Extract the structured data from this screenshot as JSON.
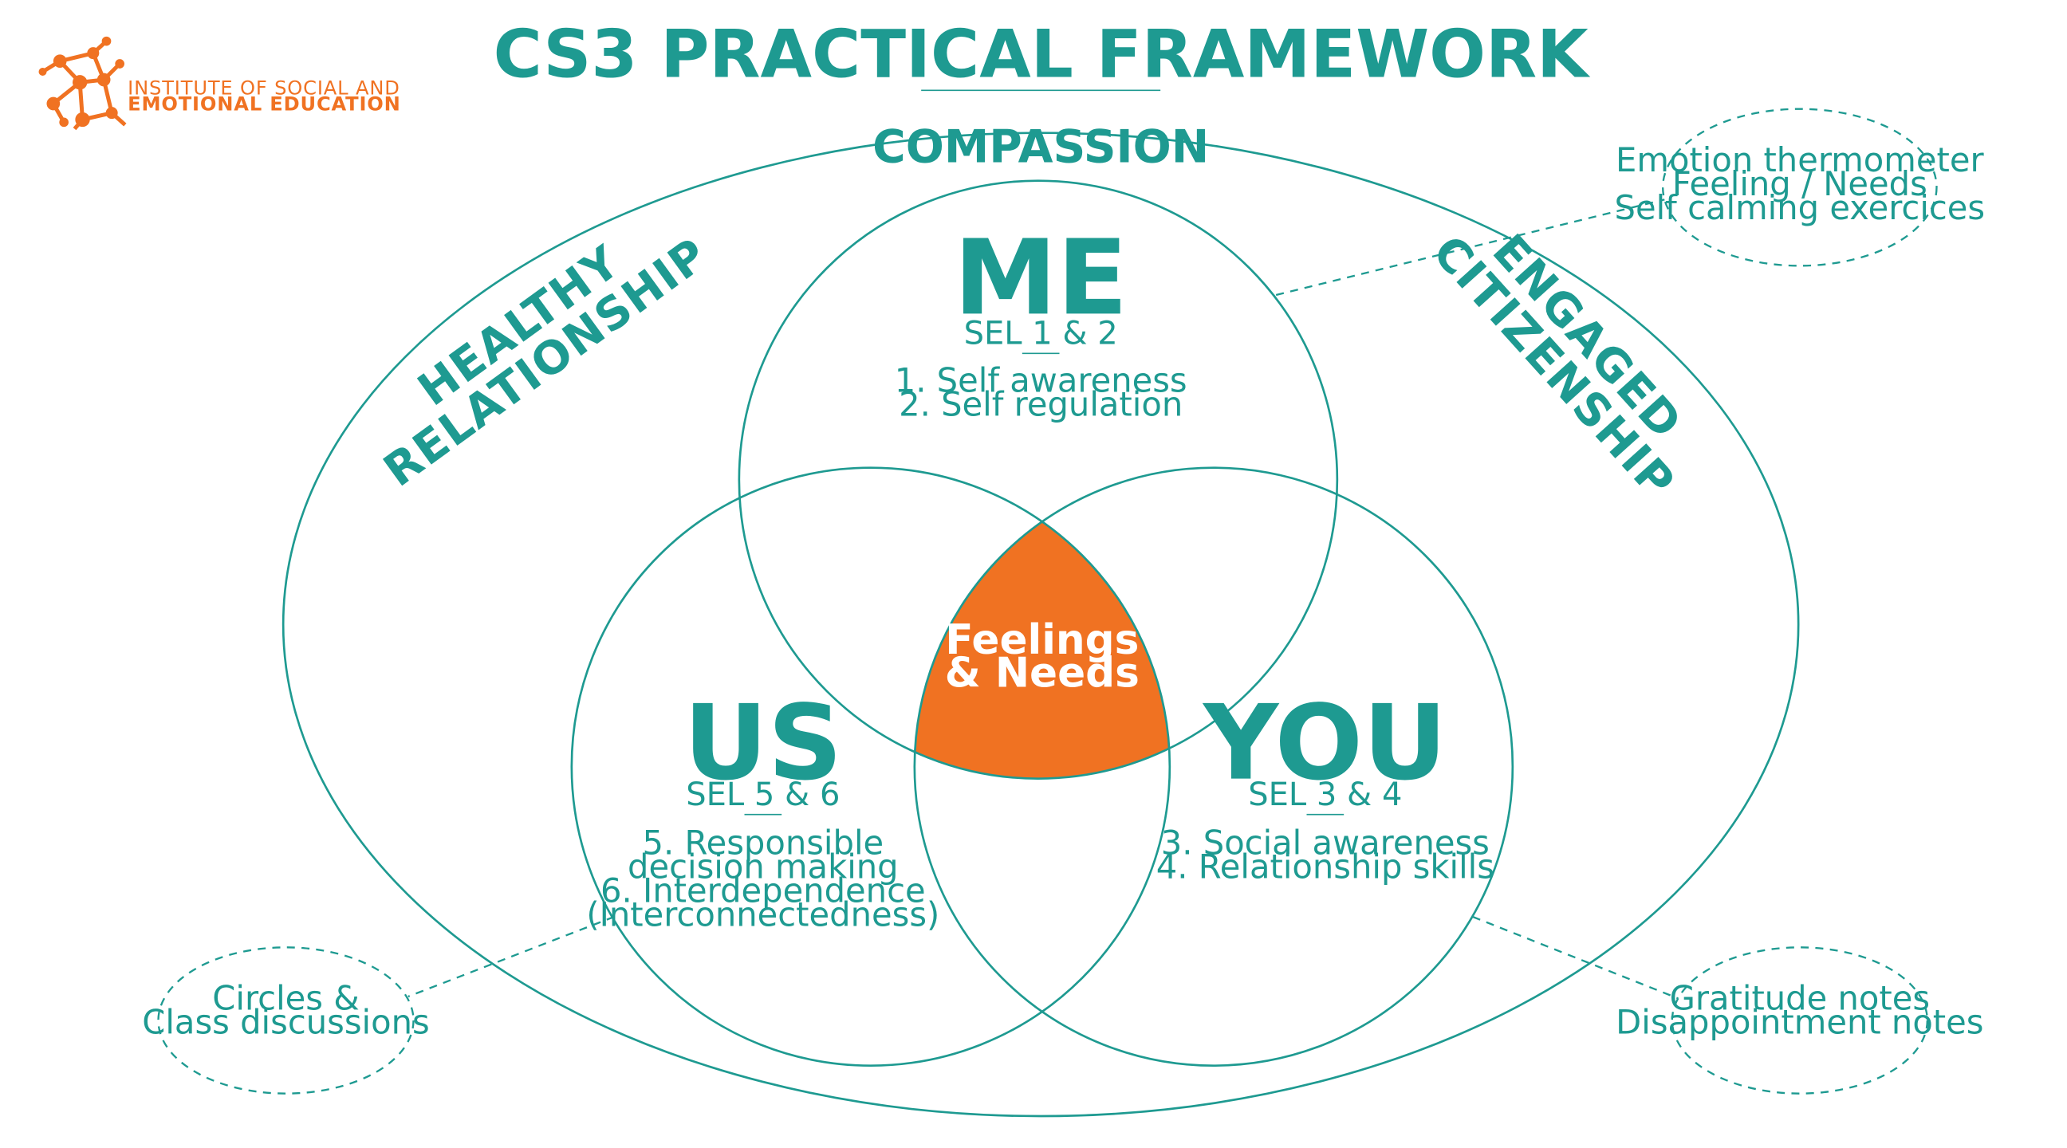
{
  "title": "CS3 PRACTICAL FRAMEWORK",
  "logo": {
    "line1": "INSTITUTE OF SOCIAL AND",
    "line2": "EMOTIONAL EDUCATION",
    "icon": "network-nodes-logo"
  },
  "outer": {
    "top_label": "COMPASSION",
    "left_label": [
      "HEALTHY",
      "RELATIONSHIP"
    ],
    "right_label": [
      "ENGAGED",
      "CITIZENSHIP"
    ]
  },
  "circles": {
    "me": {
      "name": "ME",
      "sel": "SEL 1 & 2",
      "items": [
        "1. Self awareness",
        "2. Self regulation"
      ]
    },
    "us": {
      "name": "US",
      "sel": "SEL 5 & 6",
      "items": [
        "5. Responsible",
        "decision making",
        "6. Interdependence",
        "(Interconnectedness)"
      ]
    },
    "you": {
      "name": "YOU",
      "sel": "SEL 3 & 4",
      "items": [
        "3. Social awareness",
        "4. Relationship skills"
      ]
    }
  },
  "center": {
    "line1": "Feelings",
    "line2": "& Needs"
  },
  "callouts": {
    "me": [
      "Emotion thermometer",
      "Feeling / Needs",
      "Self calming exercices"
    ],
    "us": [
      "Circles &",
      "Class discussions"
    ],
    "you": [
      "Gratitude notes",
      "Disappointment notes"
    ]
  },
  "colors": {
    "teal": "#1e9a91",
    "orange": "#f07222",
    "background": "#ffffff"
  }
}
